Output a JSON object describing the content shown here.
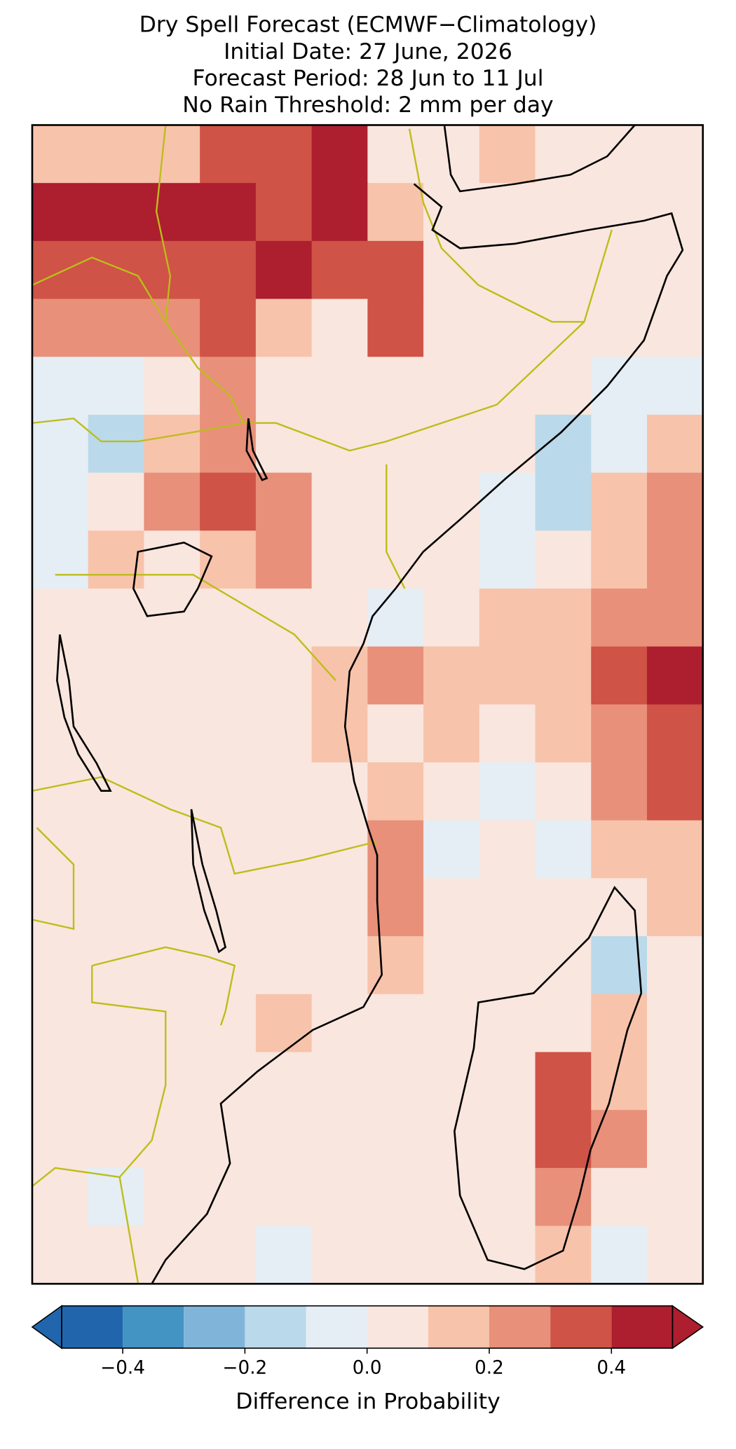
{
  "chart_data": {
    "type": "heatmap",
    "title": [
      "Dry Spell Forecast (ECMWF−Climatology)",
      "Initial Date: 27 June, 2026",
      "Forecast Period: 28 Jun to 11 Jul",
      "No Rain Threshold: 2 mm per day"
    ],
    "values": [
      [
        0.15,
        0.15,
        0.15,
        0.35,
        0.35,
        0.45,
        0.05,
        0.05,
        0.15,
        0.05,
        0.05,
        0.05
      ],
      [
        0.45,
        0.45,
        0.45,
        0.45,
        0.3,
        0.4,
        0.1,
        0.05,
        0.05,
        0.05,
        0.05,
        0.05
      ],
      [
        0.35,
        0.35,
        0.35,
        0.35,
        0.45,
        0.3,
        0.35,
        0.05,
        0.05,
        0.05,
        0.05,
        0.05
      ],
      [
        0.2,
        0.2,
        0.25,
        0.3,
        0.1,
        0.05,
        0.3,
        0.05,
        0.05,
        0.05,
        0.05,
        0.05
      ],
      [
        -0.05,
        -0.05,
        0.05,
        0.2,
        0.05,
        0.05,
        0.05,
        0.05,
        0.05,
        0.05,
        -0.05,
        -0.05
      ],
      [
        -0.05,
        -0.15,
        0.1,
        0.25,
        0.05,
        0.05,
        0.05,
        0.05,
        0.05,
        -0.15,
        -0.05,
        0.15
      ],
      [
        -0.05,
        0.05,
        0.2,
        0.3,
        0.2,
        0.05,
        0.05,
        0.05,
        -0.05,
        -0.15,
        0.15,
        0.25
      ],
      [
        -0.05,
        0.1,
        0.05,
        0.15,
        0.25,
        0.05,
        0.05,
        0.05,
        -0.05,
        0.05,
        0.15,
        0.25
      ],
      [
        0.05,
        0.05,
        0.05,
        0.05,
        0.05,
        0.05,
        -0.05,
        0.05,
        0.15,
        0.15,
        0.2,
        0.25
      ],
      [
        0.05,
        0.05,
        0.05,
        0.05,
        0.05,
        0.15,
        0.2,
        0.15,
        0.15,
        0.15,
        0.3,
        0.45
      ],
      [
        0.05,
        0.05,
        0.05,
        0.05,
        0.05,
        0.15,
        0.05,
        0.1,
        0.05,
        0.15,
        0.25,
        0.35
      ],
      [
        0.05,
        0.05,
        0.05,
        0.05,
        0.05,
        0.05,
        0.15,
        0.05,
        -0.05,
        0.05,
        0.2,
        0.3
      ],
      [
        0.05,
        0.05,
        0.05,
        0.05,
        0.05,
        0.05,
        0.2,
        -0.05,
        0.05,
        -0.05,
        0.1,
        0.15
      ],
      [
        0.05,
        0.05,
        0.05,
        0.05,
        0.05,
        0.05,
        0.2,
        0.05,
        0.05,
        0.05,
        0.05,
        0.1
      ],
      [
        0.05,
        0.05,
        0.05,
        0.05,
        0.05,
        0.05,
        0.15,
        0.05,
        0.05,
        0.05,
        -0.15,
        0.05
      ],
      [
        0.05,
        0.05,
        0.05,
        0.05,
        0.1,
        0.05,
        0.05,
        0.05,
        0.05,
        0.05,
        0.15,
        0.05
      ],
      [
        0.05,
        0.05,
        0.05,
        0.05,
        0.05,
        0.05,
        0.05,
        0.05,
        0.05,
        0.3,
        0.15,
        0.05
      ],
      [
        0.05,
        0.05,
        0.05,
        0.05,
        0.05,
        0.05,
        0.05,
        0.05,
        0.05,
        0.35,
        0.2,
        0.05
      ],
      [
        0.05,
        -0.05,
        0.05,
        0.05,
        0.05,
        0.05,
        0.05,
        0.05,
        0.05,
        0.2,
        0.05,
        0.05
      ],
      [
        0.05,
        0.05,
        0.05,
        0.05,
        -0.05,
        0.05,
        0.05,
        0.05,
        0.05,
        0.1,
        -0.05,
        0.05
      ]
    ],
    "colorbar": {
      "bins": [
        -0.5,
        -0.4,
        -0.3,
        -0.2,
        -0.1,
        0,
        0.1,
        0.2,
        0.3,
        0.4,
        0.5
      ],
      "colors": [
        "#2166ac",
        "#4393c3",
        "#80b5d9",
        "#bad9ea",
        "#e5eef4",
        "#f9e6de",
        "#f8c3ab",
        "#e8907a",
        "#cf5346",
        "#ad1e2f"
      ],
      "extend": "both",
      "ticks": [
        {
          "value": -0.4,
          "label": "−0.4"
        },
        {
          "value": -0.2,
          "label": "−0.2"
        },
        {
          "value": 0,
          "label": "0.0"
        },
        0.2,
        0.4
      ],
      "label": "Difference in Probability"
    }
  }
}
